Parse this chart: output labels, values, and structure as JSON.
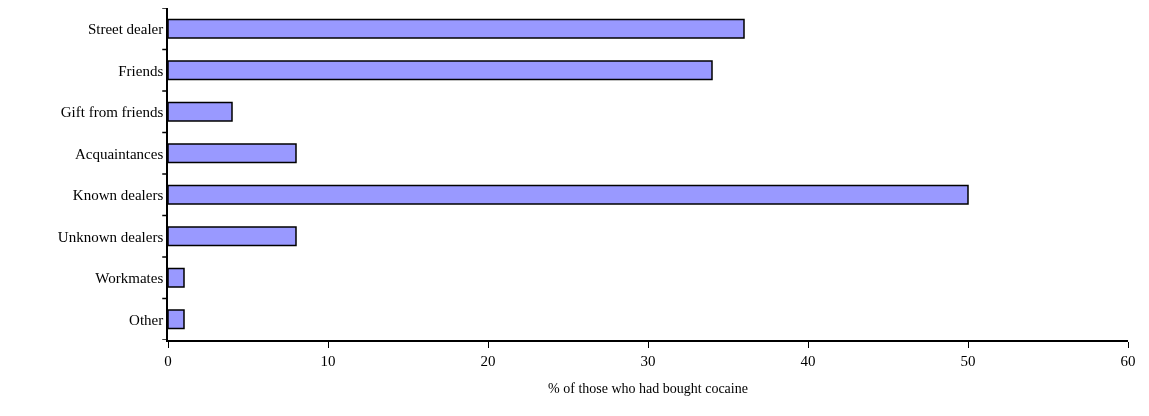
{
  "chart_data": {
    "type": "bar",
    "orientation": "horizontal",
    "xlabel": "% of those who had bought cocaine",
    "categories": [
      "Street dealer",
      "Friends",
      "Gift from friends",
      "Acquaintances",
      "Known dealers",
      "Unknown dealers",
      "Workmates",
      "Other"
    ],
    "values": [
      36,
      34,
      4,
      8,
      50,
      8,
      1,
      1
    ],
    "color": "#9999ff",
    "xlim": [
      0,
      60
    ],
    "xticks": [
      0,
      10,
      20,
      30,
      40,
      50,
      60
    ]
  }
}
